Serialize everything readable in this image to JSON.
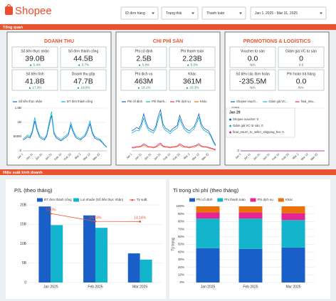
{
  "header": {
    "logo": "Shopee",
    "filters": [
      "ID đơn hàng",
      "Trạng thái",
      "Thanh toán",
      "Jan 1, 2025 - Mar 31, 2025"
    ]
  },
  "sections": [
    "Tổng quan",
    "Hiệu suất kinh doanh"
  ],
  "panels": [
    {
      "title": "DOANH THU",
      "kpis": [
        {
          "label": "Số tiền thực nhận",
          "value": "39.0B",
          "change": "▲ 5.4%"
        },
        {
          "label": "Số đơn thành công",
          "value": "44.5B",
          "change": "▲ 3.7%"
        },
        {
          "label": "Số tiền tính",
          "value": "41.8B",
          "change": "▲ 17.3%"
        },
        {
          "label": "Doanh thu gộp",
          "value": "47.7B",
          "change": "▲ 18.0%"
        }
      ]
    },
    {
      "title": "CHI PHÍ SÀN",
      "kpis": [
        {
          "label": "Phí cố định",
          "value": "2.5B",
          "change": "▲ 5.8%"
        },
        {
          "label": "Phí thanh toán",
          "value": "2.23B",
          "change": "▲ 5.6%"
        },
        {
          "label": "Phí dịch vụ",
          "value": "463M",
          "change": "▲ 18.1%"
        },
        {
          "label": "Khác",
          "value": "361M",
          "change": "▲ 20.3%"
        }
      ]
    },
    {
      "title": "PROMOTIONS & LOGISTICS",
      "kpis": [
        {
          "label": "Voucher từ sàn",
          "value": "0.0",
          "change": "N/A"
        },
        {
          "label": "Giảm giá VC từ sàn",
          "value": "0",
          "change": "0.0"
        },
        {
          "label": "Số tiền các đơn hoàn",
          "value": "-235.5M",
          "change": "N/A"
        },
        {
          "label": "Phí hoàn trả hàng",
          "value": "0.0",
          "change": "N/A"
        }
      ]
    }
  ],
  "tooltip": {
    "title": "Jan 29",
    "lines": [
      "Shopee voucher: 0",
      "Giảm giá VC từ sàn: 0",
      "final_return_to_seller_shipping_fee: 0"
    ]
  },
  "chart_data": [
    {
      "type": "line",
      "categories": [
        "Jan 1",
        null,
        null,
        null,
        "Jan 11",
        null,
        null,
        null,
        "Jan 21",
        null,
        null,
        null,
        "Jan 31",
        null,
        null,
        null,
        "Feb 10",
        null,
        null,
        null,
        "Feb 20",
        null,
        null,
        null,
        "Mar 2",
        null,
        null,
        null,
        "Mar 12",
        null,
        null,
        null,
        "Mar 22",
        null,
        null,
        null
      ],
      "ylim": [
        0,
        1500
      ],
      "yticks": [
        0,
        {
          "value": 500,
          "label": "500M"
        },
        {
          "value": 1000,
          "label": "1B"
        },
        {
          "value": 1500,
          "label": "1.5B"
        }
      ],
      "series": [
        {
          "name": "Số tiền thực nhận",
          "color": "#1a5fc8",
          "values": [
            380,
            420,
            500,
            450,
            650,
            1050,
            700,
            480,
            420,
            380,
            520,
            900,
            1250,
            600,
            450,
            400,
            350,
            420,
            480,
            560,
            900,
            650,
            480,
            420,
            380,
            450,
            520,
            700,
            950,
            600,
            450,
            400,
            380,
            300,
            200,
            120
          ]
        },
        {
          "name": "ĐT đơn thành công",
          "color": "#12b5cb",
          "values": [
            420,
            470,
            560,
            500,
            720,
            1180,
            780,
            540,
            470,
            420,
            580,
            1000,
            1380,
            670,
            500,
            450,
            390,
            470,
            540,
            620,
            1000,
            720,
            540,
            470,
            420,
            500,
            580,
            780,
            1060,
            670,
            500,
            450,
            420,
            330,
            220,
            130
          ]
        }
      ]
    },
    {
      "type": "line",
      "categories": [
        "Jan 1",
        null,
        null,
        null,
        "Jan 11",
        null,
        null,
        null,
        "Jan 21",
        null,
        null,
        null,
        "Jan 31",
        null,
        null,
        null,
        "Feb 10",
        null,
        null,
        null,
        "Feb 20",
        null,
        null,
        null,
        "Mar 2",
        null,
        null,
        null,
        "Mar 12",
        null,
        null,
        null,
        "Mar 22",
        null,
        null,
        null
      ],
      "ylim": [
        0,
        60
      ],
      "series": [
        {
          "name": "Phí cố định",
          "color": "#1a5fc8",
          "values": [
            28,
            30,
            33,
            31,
            38,
            52,
            40,
            32,
            30,
            28,
            34,
            48,
            58,
            38,
            32,
            30,
            27,
            31,
            33,
            36,
            50,
            40,
            33,
            30,
            28,
            31,
            34,
            42,
            52,
            38,
            32,
            30,
            28,
            22,
            14,
            8
          ]
        },
        {
          "name": "Phí thanh...",
          "color": "#12b5cb",
          "values": [
            25,
            27,
            29,
            28,
            34,
            46,
            36,
            29,
            27,
            25,
            30,
            43,
            52,
            34,
            29,
            27,
            24,
            28,
            30,
            32,
            45,
            36,
            30,
            27,
            25,
            28,
            31,
            38,
            47,
            34,
            29,
            27,
            25,
            20,
            12,
            7
          ]
        },
        {
          "name": "Phí dịch vụ",
          "color": "#e52592",
          "values": [
            5,
            5,
            6,
            6,
            7,
            10,
            8,
            6,
            6,
            5,
            6,
            9,
            11,
            7,
            6,
            6,
            5,
            6,
            6,
            7,
            10,
            8,
            6,
            6,
            5,
            6,
            7,
            8,
            10,
            7,
            6,
            6,
            5,
            4,
            3,
            2
          ]
        },
        {
          "name": "Khác",
          "color": "#e8710a",
          "values": [
            4,
            4,
            5,
            5,
            6,
            8,
            6,
            5,
            5,
            4,
            5,
            7,
            9,
            6,
            5,
            5,
            4,
            5,
            5,
            6,
            8,
            6,
            5,
            5,
            4,
            5,
            5,
            7,
            8,
            6,
            5,
            5,
            4,
            3,
            2,
            1
          ]
        }
      ]
    },
    {
      "type": "line",
      "categories": [
        "Jan 1",
        null,
        null,
        null,
        "Jan 11",
        null,
        null,
        null,
        "Jan 21",
        null,
        null,
        null,
        "Jan 31",
        null,
        null,
        null,
        "Feb 10",
        null,
        null,
        null,
        "Feb 20",
        null,
        null,
        null,
        "Mar 2",
        null,
        null,
        null,
        "Mar 12",
        null,
        null,
        null,
        "Mar 22",
        null,
        null,
        null
      ],
      "ylim": [
        0,
        100
      ],
      "yticks": [
        0,
        {
          "value": 100,
          "label": "100M"
        }
      ],
      "series": [
        {
          "name": "Shopee vouch...",
          "color": "#1a5fc8",
          "values": [
            0,
            0,
            0,
            0,
            0,
            0,
            0,
            0,
            0,
            0,
            0,
            0,
            0,
            0,
            0,
            0,
            0,
            0,
            0,
            0,
            0,
            0,
            0,
            0,
            0,
            0,
            0,
            0,
            0,
            0,
            0,
            0,
            0,
            0,
            0,
            0
          ]
        },
        {
          "name": "Giảm giá VC...",
          "color": "#12b5cb",
          "values": [
            0,
            0,
            0,
            0,
            0,
            0,
            0,
            0,
            0,
            0,
            0,
            0,
            0,
            0,
            0,
            0,
            0,
            0,
            0,
            0,
            0,
            0,
            0,
            0,
            0,
            0,
            0,
            0,
            0,
            0,
            0,
            0,
            0,
            0,
            0,
            0
          ]
        },
        {
          "name": "final_retu...",
          "color": "#e52592",
          "values": [
            0,
            0,
            0,
            0,
            0,
            0,
            0,
            0,
            0,
            0,
            0,
            0,
            0,
            0,
            0,
            0,
            0,
            0,
            0,
            0,
            0,
            0,
            0,
            0,
            0,
            0,
            0,
            0,
            0,
            0,
            0,
            0,
            0,
            0,
            0,
            0
          ]
        }
      ]
    },
    {
      "type": "bar",
      "title": "P/L (theo tháng)",
      "categories": [
        "Jan 2025",
        "Feb 2025",
        "Mar 2025"
      ],
      "ylim": [
        0,
        20
      ],
      "yticks": [
        0,
        {
          "value": 5,
          "label": "5B"
        },
        {
          "value": 10,
          "label": "10B"
        },
        {
          "value": 15,
          "label": "15B"
        },
        {
          "value": 20,
          "label": "20B"
        }
      ],
      "y2lim": [
        0,
        18
      ],
      "series": [
        {
          "name": "ĐT đơn thành công",
          "color": "#1a5fc8",
          "values": [
            19.6,
            17.3,
            7.5
          ]
        },
        {
          "name": "Lợi nhuận (Số tiền thực nhận)",
          "color": "#12b5cb",
          "values": [
            14.8,
            14.1,
            5.9
          ]
        },
        {
          "name": "Tỷ suất",
          "color": "#e8542f",
          "axis": "y2",
          "values": [
            16.0,
            14.18,
            14.14
          ],
          "value_labels": [
            "16.0%",
            "14.18%",
            "14.14%"
          ]
        }
      ]
    },
    {
      "type": "stacked_bar",
      "title": "Tỉ trọng chi phí (theo tháng)",
      "ylabel": "Tỷ trọng",
      "categories": [
        "Jan 2025",
        "Feb 2025",
        "Mar 2025"
      ],
      "ylim": [
        0,
        100
      ],
      "yticks": [
        {
          "value": 0,
          "label": "0%"
        },
        {
          "value": 10,
          "label": "10%"
        },
        {
          "value": 20,
          "label": "20%"
        },
        {
          "value": 30,
          "label": "30%"
        },
        {
          "value": 40,
          "label": "40%"
        },
        {
          "value": 50,
          "label": "50%"
        },
        {
          "value": 60,
          "label": "60%"
        },
        {
          "value": 70,
          "label": "70%"
        },
        {
          "value": 80,
          "label": "80%"
        },
        {
          "value": 90,
          "label": "90%"
        },
        {
          "value": 100,
          "label": "100%"
        }
      ],
      "series": [
        {
          "name": "Phí cố định",
          "color": "#1a5fc8",
          "values": [
            45,
            44,
            46
          ]
        },
        {
          "name": "Phí thanh toán",
          "color": "#12b5cb",
          "values": [
            39,
            40,
            36
          ]
        },
        {
          "name": "Phí dịch vụ",
          "color": "#e52592",
          "values": [
            8,
            8,
            9
          ]
        },
        {
          "name": "Khác",
          "color": "#e8710a",
          "values": [
            8,
            8,
            9
          ]
        }
      ]
    }
  ]
}
